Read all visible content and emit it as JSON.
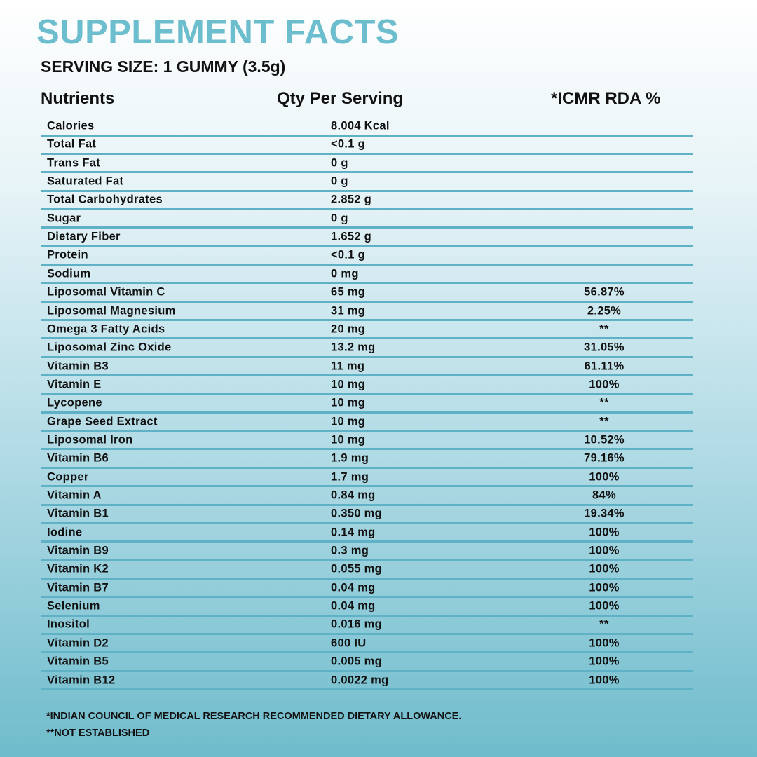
{
  "header": {
    "title": "SUPPLEMENT FACTS",
    "serving_size": "SERVING SIZE: 1 GUMMY (3.5g)"
  },
  "table": {
    "columns": [
      "Nutrients",
      "Qty Per Serving",
      "*ICMR RDA %"
    ],
    "rows": [
      [
        "Calories",
        "8.004 Kcal"
      ],
      [
        "Total Fat",
        "<0.1 g"
      ],
      [
        "Trans Fat",
        "0 g"
      ],
      [
        "Saturated Fat",
        "0 g"
      ],
      [
        "Total Carbohydrates",
        "2.852 g"
      ],
      [
        "Sugar",
        "0 g"
      ],
      [
        "Dietary Fiber",
        "1.652 g"
      ],
      [
        "Protein",
        "<0.1 g"
      ],
      [
        "Sodium",
        "0 mg"
      ],
      [
        "Liposomal Vitamin C",
        "65 mg",
        "56.87%"
      ],
      [
        "Liposomal Magnesium",
        "31 mg",
        "2.25%"
      ],
      [
        "Omega 3 Fatty Acids",
        "20 mg",
        "**"
      ],
      [
        "Liposomal Zinc Oxide",
        "13.2 mg",
        "31.05%"
      ],
      [
        "Vitamin B3",
        "11 mg",
        "61.11%"
      ],
      [
        "Vitamin E",
        "10 mg",
        "100%"
      ],
      [
        "Lycopene",
        "10 mg",
        "**"
      ],
      [
        "Grape Seed Extract",
        "10 mg",
        "**"
      ],
      [
        "Liposomal Iron",
        "10 mg",
        "10.52%"
      ],
      [
        "Vitamin B6",
        "1.9 mg",
        "79.16%"
      ],
      [
        "Copper",
        "1.7 mg",
        "100%"
      ],
      [
        "Vitamin A",
        "0.84 mg",
        "84%"
      ],
      [
        "Vitamin B1",
        "0.350 mg",
        "19.34%"
      ],
      [
        "Iodine",
        "0.14 mg",
        "100%"
      ],
      [
        "Vitamin B9",
        "0.3 mg",
        "100%"
      ],
      [
        "Vitamin K2",
        "0.055 mg",
        "100%"
      ],
      [
        "Vitamin B7",
        "0.04 mg",
        "100%"
      ],
      [
        "Selenium",
        "0.04 mg",
        "100%"
      ],
      [
        "Inositol",
        "0.016 mg",
        "**"
      ],
      [
        "Vitamin D2",
        "600 IU",
        "100%"
      ],
      [
        "Vitamin B5",
        "0.005 mg",
        "100%"
      ],
      [
        "Vitamin B12",
        "0.0022 mg",
        "100%"
      ]
    ]
  },
  "footnotes": [
    "*INDIAN COUNCIL OF MEDICAL RESEARCH RECOMMENDED DIETARY ALLOWANCE.",
    "**NOT ESTABLISHED"
  ]
}
